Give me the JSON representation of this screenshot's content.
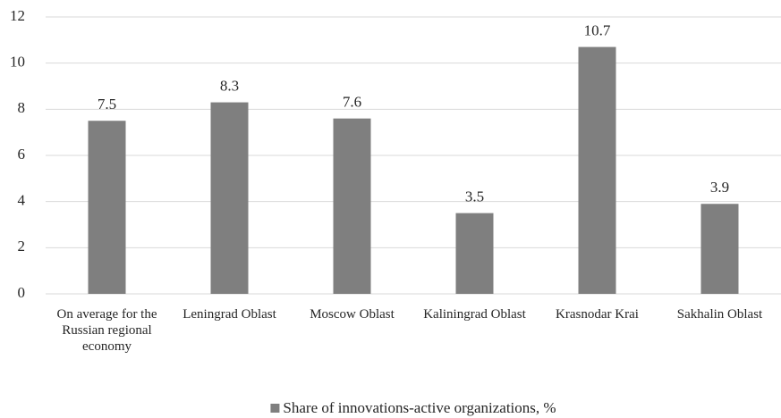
{
  "chart_data": {
    "type": "bar",
    "categories": [
      "On average for the Russian regional economy",
      "Leningrad Oblast",
      "Moscow Oblast",
      "Kaliningrad Oblast",
      "Krasnodar Krai",
      "Sakhalin Oblast"
    ],
    "series": [
      {
        "name": "Share of innovations-active organizations, %",
        "color": "#7f7f7f",
        "values": [
          7.5,
          8.3,
          7.6,
          3.5,
          10.7,
          3.9
        ]
      }
    ],
    "ylim": [
      0,
      12
    ],
    "yticks": [
      0,
      2,
      4,
      6,
      8,
      10,
      12
    ],
    "grid": true,
    "legend": "bottom"
  }
}
